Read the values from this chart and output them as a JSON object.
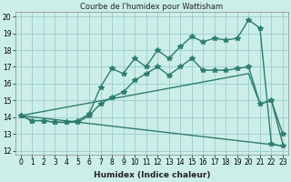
{
  "title": "Courbe de l'humidex pour Wattisham",
  "xlabel": "Humidex (Indice chaleur)",
  "bg_color": "#cceee8",
  "grid_color": "#99cccc",
  "line_color": "#2e7d6e",
  "xlim": [
    -0.5,
    23.5
  ],
  "ylim": [
    11.8,
    20.3
  ],
  "xticks": [
    0,
    1,
    2,
    3,
    4,
    5,
    6,
    7,
    8,
    9,
    10,
    11,
    12,
    13,
    14,
    15,
    16,
    17,
    18,
    19,
    20,
    21,
    22,
    23
  ],
  "yticks": [
    12,
    13,
    14,
    15,
    16,
    17,
    18,
    19,
    20
  ],
  "series": [
    {
      "x": [
        0,
        1,
        2,
        3,
        4,
        5,
        6,
        7,
        8,
        9,
        10,
        11,
        12,
        13,
        14,
        15,
        16,
        17,
        18,
        19,
        20,
        21,
        22,
        23
      ],
      "y": [
        14.1,
        13.8,
        13.8,
        13.7,
        13.7,
        13.8,
        14.2,
        15.8,
        16.9,
        16.6,
        17.5,
        17.0,
        18.0,
        17.5,
        18.2,
        18.8,
        18.5,
        18.7,
        18.6,
        18.7,
        19.8,
        19.3,
        12.4,
        12.3
      ],
      "marker": "*",
      "markersize": 4,
      "linewidth": 1.0
    },
    {
      "x": [
        0,
        1,
        2,
        3,
        4,
        5,
        6,
        7,
        8,
        9,
        10,
        11,
        12,
        13,
        14,
        15,
        16,
        17,
        18,
        19,
        20,
        21,
        22,
        23
      ],
      "y": [
        14.1,
        13.8,
        13.8,
        13.7,
        13.7,
        13.7,
        14.1,
        14.8,
        15.2,
        15.5,
        16.2,
        16.6,
        17.0,
        16.5,
        17.0,
        17.5,
        16.8,
        16.8,
        16.8,
        16.9,
        17.0,
        14.8,
        15.0,
        13.0
      ],
      "marker": "*",
      "markersize": 4,
      "linewidth": 1.0
    },
    {
      "x": [
        0,
        20,
        21,
        22,
        23
      ],
      "y": [
        14.1,
        16.6,
        14.8,
        15.0,
        12.4
      ],
      "marker": null,
      "markersize": 0,
      "linewidth": 1.0
    },
    {
      "x": [
        0,
        23
      ],
      "y": [
        14.1,
        12.3
      ],
      "marker": null,
      "markersize": 0,
      "linewidth": 1.0
    }
  ]
}
